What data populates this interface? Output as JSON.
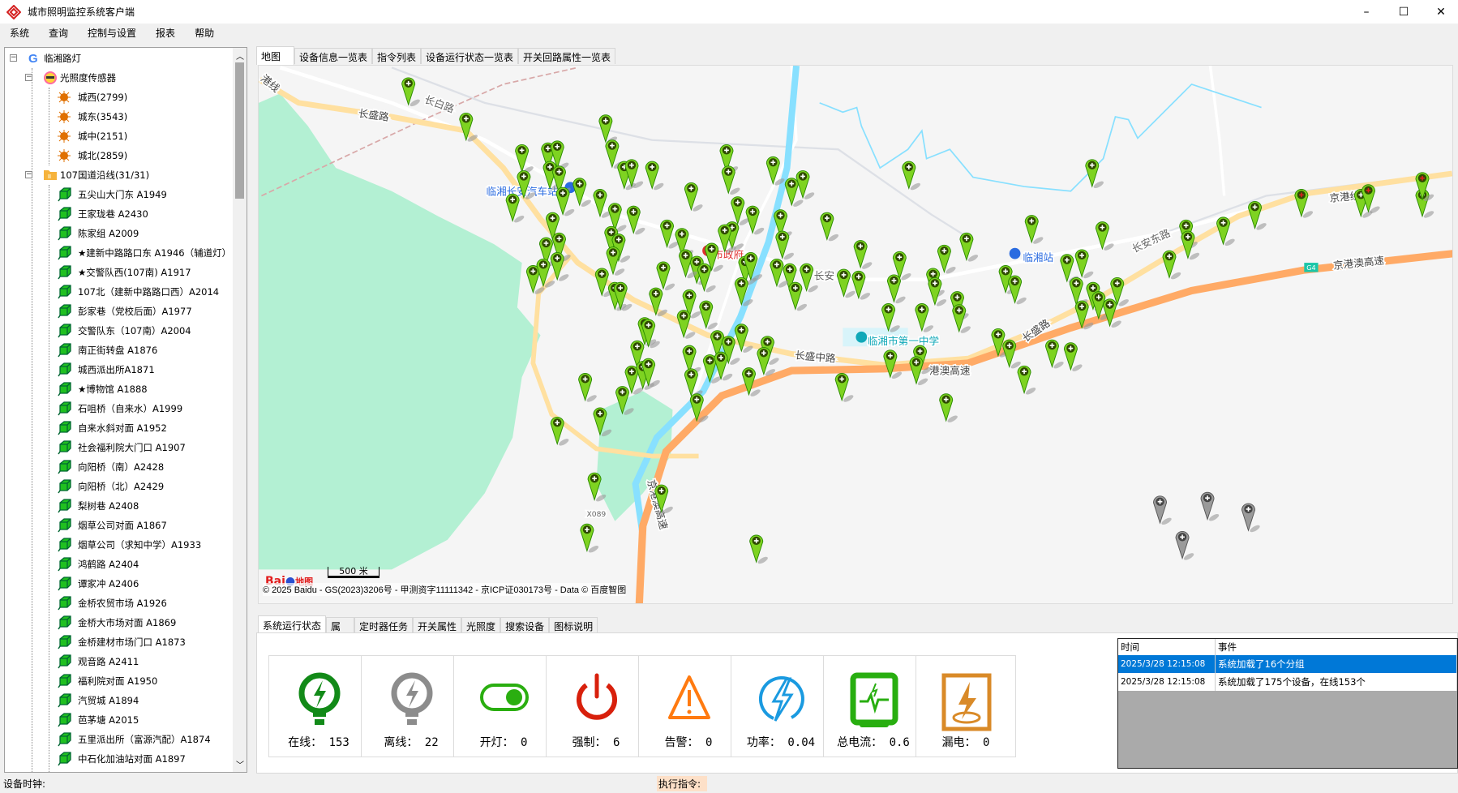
{
  "window": {
    "title": "城市照明监控系统客户端",
    "minimize": "–",
    "maximize": "☐",
    "close": "✕"
  },
  "menu": [
    "系统",
    "查询",
    "控制与设置",
    "报表",
    "帮助"
  ],
  "tree": {
    "root": "临湘路灯",
    "sensor_group": "光照度传感器",
    "sensors": [
      "城西(2799)",
      "城东(3543)",
      "城中(2151)",
      "城北(2859)"
    ],
    "line_group": "107国道沿线(31/31)",
    "items": [
      "五尖山大门东 A1949",
      "王家珑巷 A2430",
      "陈家组 A2009",
      "★建新中路路口东 A1946（辅道灯）",
      "★交警队西(107南) A1917",
      "107北（建新中路路口西）A2014",
      "彭家巷（党校后面）A1977",
      "交警队东（107南）A2004",
      "南正街转盘 A1876",
      "城西派出所A1871",
      "★博物馆 A1888",
      "石咀桥（自来水）A1999",
      "自来水斜对面 A1952",
      "社会福利院大门口 A1907",
      "向阳桥（南）A2428",
      "向阳桥（北）A2429",
      "梨树巷 A2408",
      "烟草公司对面 A1867",
      "烟草公司（求知中学）A1933",
      "鸿鹤路 A2404",
      "谭家冲 A2406",
      "金桥农贸市场 A1926",
      "金桥大市场对面 A1869",
      "金桥建材市场门口 A1873",
      "观音路 A2411",
      "福利院对面 A1950",
      "汽贸城 A1894",
      "芭茅塘 A2015",
      "五里派出所（富源汽配）A1874",
      "中石化加油站对面  A1897"
    ]
  },
  "map_tabs": [
    "地图",
    "设备信息一览表",
    "指令列表",
    "设备运行状态一览表",
    "开关回路属性一览表"
  ],
  "map": {
    "labels": {
      "changsheng": "长盛路",
      "changbai": "长白路",
      "bus_station": "临湘长安汽车站",
      "gov": "市政府",
      "changan": "长安",
      "changsheng_mid": "长盛中路",
      "school": "临湘市第一中学",
      "gangao": "港澳高速",
      "changsheng2": "长盛路",
      "station": "临湘站",
      "changan_east": "长安东路",
      "jinggang_line": "京港线",
      "jga": "京港澳高速",
      "g4": "G4",
      "jga_v": "京港澳高速",
      "x089": "X089",
      "line_left": "港线"
    },
    "scale": "500 米",
    "logo": "Bai地图",
    "copyright": "© 2025 Baidu - GS(2023)3206号 - 甲测资字11111342 - 京ICP证030173号 - Data © 百度智图",
    "colors": {
      "online": "#3aa10a",
      "offline": "#808080",
      "alarm": "#e02020"
    }
  },
  "bottom_tabs": [
    "系统运行状态",
    "属性",
    "定时器任务",
    "开关属性",
    "光照度",
    "搜索设备",
    "图标说明"
  ],
  "stats": [
    {
      "label": "在线：",
      "value": "153",
      "icon": "lamp-online-icon",
      "color": "#128a18"
    },
    {
      "label": "离线：",
      "value": "22",
      "icon": "lamp-offline-icon",
      "color": "#8c8c8c"
    },
    {
      "label": "开灯：",
      "value": "0",
      "icon": "toggle-icon",
      "color": "#2aae10"
    },
    {
      "label": "强制：",
      "value": "6",
      "icon": "power-icon",
      "color": "#d8200c"
    },
    {
      "label": "告警：",
      "value": "0",
      "icon": "warning-icon",
      "color": "#ff7a10"
    },
    {
      "label": "功率：",
      "value": "0.04",
      "icon": "lightning-icon",
      "color": "#1a9ae0"
    },
    {
      "label": "总电流：",
      "value": "0.6",
      "icon": "current-meter-icon",
      "color": "#28ae10"
    },
    {
      "label": "漏电：",
      "value": "0",
      "icon": "leakage-icon",
      "color": "#d98a28"
    }
  ],
  "events": {
    "headers": [
      "时间",
      "事件"
    ],
    "rows": [
      [
        "2025/3/28 12:15:08",
        "系统加载了16个分组"
      ],
      [
        "2025/3/28 12:15:08",
        "系统加载了175个设备，在线153个"
      ]
    ]
  },
  "status": {
    "clock": "设备时钟:",
    "command": "执行指令:"
  }
}
